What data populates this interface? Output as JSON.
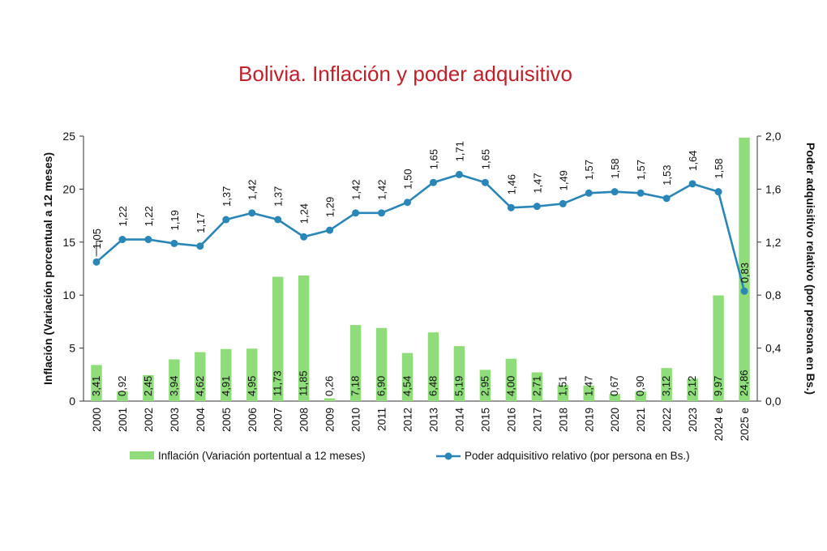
{
  "chart_data": {
    "type": "bar+line",
    "title": "Bolivia. Inflación y poder adquisitivo",
    "categories": [
      "2000",
      "2001",
      "2002",
      "2003",
      "2004",
      "2005",
      "2006",
      "2007",
      "2008",
      "2009",
      "2010",
      "2011",
      "2012",
      "2013",
      "2014",
      "2015",
      "2016",
      "2017",
      "2018",
      "2019",
      "2020",
      "2021",
      "2022",
      "2023",
      "2024 e",
      "2025 e"
    ],
    "series": [
      {
        "name": "Inflación (Variación portentual a 12 meses)",
        "type": "bar",
        "axis": "left",
        "color": "#8fdc7a",
        "values": [
          3.41,
          0.92,
          2.45,
          3.94,
          4.62,
          4.91,
          4.95,
          11.73,
          11.85,
          0.26,
          7.18,
          6.9,
          4.54,
          6.48,
          5.19,
          2.95,
          4.0,
          2.71,
          1.51,
          1.47,
          0.67,
          0.9,
          3.12,
          2.12,
          9.97,
          24.86
        ],
        "labels": [
          "3,41",
          "0,92",
          "2,45",
          "3,94",
          "4,62",
          "4,91",
          "4,95",
          "11,73",
          "11,85",
          "0,26",
          "7,18",
          "6,90",
          "4,54",
          "6,48",
          "5,19",
          "2,95",
          "4,00",
          "2,71",
          "1,51",
          "1,47",
          "0,67",
          "0,90",
          "3,12",
          "2,12",
          "9,97",
          "24,86"
        ]
      },
      {
        "name": "Poder adquisitivo relativo (por persona en Bs.)",
        "type": "line",
        "axis": "right",
        "color": "#2a86b6",
        "values": [
          1.05,
          1.22,
          1.22,
          1.19,
          1.17,
          1.37,
          1.42,
          1.37,
          1.24,
          1.29,
          1.42,
          1.42,
          1.5,
          1.65,
          1.71,
          1.65,
          1.46,
          1.47,
          1.49,
          1.57,
          1.58,
          1.57,
          1.53,
          1.64,
          1.58,
          0.83
        ],
        "labels": [
          "1,05",
          "1,22",
          "1,22",
          "1,19",
          "1,17",
          "1,37",
          "1,42",
          "1,37",
          "1,24",
          "1,29",
          "1,42",
          "1,42",
          "1,50",
          "1,65",
          "1,71",
          "1,65",
          "1,46",
          "1,47",
          "1,49",
          "1,57",
          "1,58",
          "1,57",
          "1,53",
          "1,64",
          "1,58",
          "0,83"
        ]
      }
    ],
    "left_axis": {
      "label": "Inflación (Variación porcentual a 12 meses)",
      "ylim": [
        0,
        25
      ],
      "ticks": [
        "0",
        "5",
        "10",
        "15",
        "20",
        "25"
      ]
    },
    "right_axis": {
      "label": "Poder adquisitivo relativo (por persona en Bs.)",
      "ylim": [
        0,
        2.0
      ],
      "ticks": [
        "0,0",
        "0,4",
        "0,8",
        "1,2",
        "1,6",
        "2,0"
      ]
    },
    "grid": false,
    "legend_position": "bottom"
  }
}
